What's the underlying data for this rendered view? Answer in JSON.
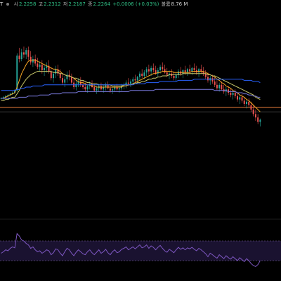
{
  "header": {
    "symbol": "T",
    "open_label": "시",
    "open_value": "2.2258",
    "high_label": "고",
    "high_value": "2.2312",
    "low_label": "저",
    "low_value": "2.2187",
    "close_label": "종",
    "close_value": "2.2264",
    "change_value": "+0.0006 (+0.03%)",
    "volume_label": "볼륨",
    "volume_value": "8.76 M"
  },
  "colors": {
    "background": "#000000",
    "up_candle": "#26a69a",
    "down_candle": "#ef5350",
    "ma_fast": "#f6a623",
    "ma_mid": "#c8c86a",
    "ma_slow": "#2962ff",
    "ma_long": "#7b7be0",
    "price_line": "#f0803c",
    "rsi_line": "#7e57c2",
    "rsi_band": "#1a1230"
  },
  "chart_data": [
    {
      "type": "candlestick",
      "x_range": [
        0,
        150
      ],
      "y_range": [
        0,
        100
      ],
      "grid": false,
      "candles": [
        [
          50,
          51,
          49,
          50
        ],
        [
          50,
          52,
          49,
          51
        ],
        [
          51,
          53,
          50,
          52
        ],
        [
          52,
          54,
          51,
          53
        ],
        [
          53,
          55,
          52,
          54
        ],
        [
          54,
          56,
          53,
          55
        ],
        [
          55,
          58,
          54,
          57
        ],
        [
          57,
          90,
          56,
          88
        ],
        [
          88,
          95,
          82,
          85
        ],
        [
          85,
          94,
          83,
          91
        ],
        [
          91,
          96,
          86,
          89
        ],
        [
          89,
          95,
          85,
          93
        ],
        [
          93,
          96,
          84,
          87
        ],
        [
          87,
          92,
          80,
          82
        ],
        [
          82,
          88,
          78,
          85
        ],
        [
          85,
          89,
          79,
          81
        ],
        [
          81,
          86,
          76,
          78
        ],
        [
          78,
          83,
          74,
          80
        ],
        [
          80,
          84,
          72,
          75
        ],
        [
          75,
          80,
          70,
          77
        ],
        [
          77,
          82,
          73,
          79
        ],
        [
          79,
          84,
          72,
          74
        ],
        [
          74,
          78,
          66,
          68
        ],
        [
          68,
          74,
          64,
          72
        ],
        [
          72,
          79,
          68,
          76
        ],
        [
          76,
          80,
          70,
          72
        ],
        [
          72,
          76,
          66,
          68
        ],
        [
          68,
          72,
          62,
          64
        ],
        [
          64,
          70,
          60,
          67
        ],
        [
          67,
          74,
          64,
          71
        ],
        [
          71,
          75,
          66,
          69
        ],
        [
          69,
          72,
          62,
          64
        ],
        [
          64,
          68,
          58,
          60
        ],
        [
          60,
          66,
          57,
          63
        ],
        [
          63,
          68,
          60,
          65
        ],
        [
          65,
          69,
          60,
          62
        ],
        [
          62,
          66,
          58,
          60
        ],
        [
          60,
          64,
          56,
          58
        ],
        [
          58,
          62,
          55,
          61
        ],
        [
          61,
          65,
          58,
          63
        ],
        [
          63,
          66,
          59,
          60
        ],
        [
          60,
          63,
          56,
          57
        ],
        [
          57,
          61,
          54,
          59
        ],
        [
          59,
          63,
          56,
          61
        ],
        [
          61,
          64,
          57,
          58
        ],
        [
          58,
          62,
          55,
          60
        ],
        [
          60,
          64,
          57,
          62
        ],
        [
          62,
          65,
          58,
          59
        ],
        [
          59,
          62,
          55,
          57
        ],
        [
          57,
          60,
          54,
          58
        ],
        [
          58,
          62,
          56,
          60
        ],
        [
          60,
          63,
          57,
          58
        ],
        [
          58,
          61,
          55,
          59
        ],
        [
          59,
          63,
          57,
          61
        ],
        [
          61,
          64,
          58,
          62
        ],
        [
          62,
          66,
          59,
          64
        ],
        [
          64,
          68,
          61,
          63
        ],
        [
          63,
          67,
          60,
          65
        ],
        [
          65,
          69,
          62,
          67
        ],
        [
          67,
          71,
          64,
          66
        ],
        [
          66,
          70,
          63,
          69
        ],
        [
          69,
          74,
          66,
          72
        ],
        [
          72,
          76,
          68,
          70
        ],
        [
          70,
          75,
          67,
          73
        ],
        [
          73,
          78,
          70,
          76
        ],
        [
          76,
          80,
          71,
          74
        ],
        [
          74,
          79,
          70,
          77
        ],
        [
          77,
          81,
          73,
          75
        ],
        [
          75,
          79,
          71,
          72
        ],
        [
          72,
          77,
          69,
          75
        ],
        [
          75,
          80,
          72,
          78
        ],
        [
          78,
          82,
          74,
          76
        ],
        [
          76,
          80,
          72,
          73
        ],
        [
          73,
          77,
          69,
          71
        ],
        [
          71,
          75,
          67,
          72
        ],
        [
          72,
          76,
          68,
          70
        ],
        [
          70,
          74,
          66,
          68
        ],
        [
          68,
          73,
          65,
          71
        ],
        [
          71,
          76,
          68,
          74
        ],
        [
          74,
          78,
          70,
          72
        ],
        [
          72,
          76,
          68,
          75
        ],
        [
          75,
          79,
          71,
          73
        ],
        [
          73,
          77,
          70,
          76
        ],
        [
          76,
          80,
          72,
          74
        ],
        [
          74,
          78,
          71,
          77
        ],
        [
          77,
          81,
          73,
          75
        ],
        [
          75,
          79,
          71,
          73
        ],
        [
          73,
          77,
          69,
          76
        ],
        [
          76,
          80,
          72,
          74
        ],
        [
          74,
          78,
          70,
          72
        ],
        [
          72,
          75,
          67,
          69
        ],
        [
          69,
          73,
          64,
          66
        ],
        [
          66,
          70,
          62,
          68
        ],
        [
          68,
          71,
          63,
          65
        ],
        [
          65,
          69,
          60,
          62
        ],
        [
          62,
          66,
          57,
          59
        ],
        [
          59,
          64,
          56,
          62
        ],
        [
          62,
          65,
          57,
          58
        ],
        [
          58,
          62,
          54,
          56
        ],
        [
          56,
          60,
          52,
          58
        ],
        [
          58,
          61,
          53,
          55
        ],
        [
          55,
          59,
          51,
          53
        ],
        [
          53,
          57,
          49,
          55
        ],
        [
          55,
          58,
          50,
          52
        ],
        [
          52,
          55,
          47,
          49
        ],
        [
          49,
          53,
          45,
          51
        ],
        [
          51,
          54,
          46,
          48
        ],
        [
          48,
          51,
          43,
          45
        ],
        [
          45,
          49,
          41,
          47
        ],
        [
          47,
          50,
          42,
          44
        ],
        [
          44,
          47,
          38,
          40
        ],
        [
          40,
          44,
          34,
          36
        ],
        [
          36,
          40,
          30,
          33
        ],
        [
          33,
          36,
          27,
          29
        ],
        [
          29,
          32,
          25,
          31
        ]
      ],
      "moving_averages": [
        {
          "key": "ma_fast",
          "values": [
            50,
            50,
            51,
            52,
            53,
            54,
            55,
            60,
            66,
            72,
            76,
            80,
            83,
            84,
            84,
            84,
            83,
            82,
            81,
            80,
            79,
            78,
            77,
            76,
            76,
            75,
            74,
            72,
            71,
            70,
            70,
            69,
            68,
            66,
            65,
            64,
            64,
            63,
            62,
            62,
            61,
            61,
            60,
            60,
            60,
            60,
            60,
            60,
            60,
            60,
            60,
            60,
            60,
            60,
            61,
            61,
            62,
            62,
            63,
            64,
            65,
            66,
            67,
            68,
            69,
            70,
            71,
            72,
            72,
            73,
            73,
            74,
            74,
            74,
            74,
            74,
            73,
            73,
            73,
            73,
            73,
            73,
            73,
            73,
            74,
            74,
            74,
            74,
            74,
            74,
            73,
            72,
            71,
            70,
            69,
            67,
            66,
            64,
            63,
            61,
            60,
            59,
            57,
            56,
            55,
            53,
            52,
            51,
            49,
            48,
            46,
            44,
            42,
            40,
            38
          ]
        },
        {
          "key": "ma_mid",
          "values": [
            48,
            48,
            49,
            49,
            50,
            51,
            51,
            54,
            57,
            61,
            64,
            67,
            69,
            71,
            72,
            73,
            74,
            74,
            74,
            74,
            74,
            74,
            74,
            73,
            73,
            73,
            72,
            72,
            71,
            70,
            70,
            69,
            68,
            68,
            67,
            66,
            66,
            65,
            64,
            64,
            63,
            63,
            63,
            62,
            62,
            62,
            62,
            62,
            62,
            61,
            61,
            61,
            61,
            61,
            62,
            62,
            62,
            62,
            63,
            63,
            64,
            64,
            65,
            65,
            66,
            67,
            67,
            68,
            68,
            69,
            69,
            70,
            70,
            70,
            71,
            71,
            71,
            71,
            71,
            71,
            72,
            72,
            72,
            72,
            72,
            72,
            72,
            72,
            72,
            72,
            72,
            71,
            71,
            70,
            70,
            69,
            68,
            67,
            66,
            65,
            64,
            63,
            62,
            61,
            60,
            59,
            58,
            57,
            56,
            55,
            54,
            53,
            51,
            50,
            49
          ]
        },
        {
          "key": "ma_slow",
          "values": [
            57,
            57,
            57,
            57,
            57,
            57,
            57,
            58,
            58,
            59,
            59,
            60,
            60,
            60,
            61,
            61,
            61,
            61,
            61,
            62,
            62,
            62,
            62,
            62,
            62,
            62,
            62,
            62,
            62,
            62,
            62,
            62,
            62,
            62,
            62,
            62,
            62,
            62,
            62,
            62,
            62,
            62,
            62,
            62,
            62,
            62,
            62,
            62,
            62,
            62,
            62,
            62,
            62,
            62,
            62,
            62,
            62,
            62,
            62,
            63,
            63,
            63,
            63,
            63,
            64,
            64,
            64,
            64,
            64,
            64,
            65,
            65,
            65,
            65,
            65,
            65,
            65,
            65,
            66,
            66,
            66,
            66,
            66,
            66,
            66,
            67,
            67,
            67,
            67,
            67,
            67,
            67,
            67,
            67,
            67,
            67,
            67,
            67,
            67,
            67,
            67,
            67,
            67,
            67,
            67,
            67,
            67,
            66,
            66,
            66,
            66,
            65,
            65,
            65,
            64
          ]
        },
        {
          "key": "ma_long",
          "values": [
            50,
            50,
            50,
            50,
            50,
            50,
            50,
            50,
            51,
            51,
            51,
            51,
            52,
            52,
            52,
            52,
            52,
            53,
            53,
            53,
            53,
            53,
            54,
            54,
            54,
            54,
            54,
            55,
            55,
            55,
            55,
            55,
            55,
            55,
            56,
            56,
            56,
            56,
            56,
            56,
            56,
            56,
            56,
            56,
            56,
            56,
            56,
            56,
            56,
            56,
            56,
            56,
            56,
            56,
            56,
            56,
            56,
            57,
            57,
            57,
            57,
            57,
            57,
            57,
            57,
            57,
            57,
            57,
            58,
            58,
            58,
            58,
            58,
            58,
            58,
            58,
            58,
            58,
            58,
            58,
            58,
            58,
            58,
            58,
            58,
            58,
            58,
            58,
            58,
            58,
            58,
            58,
            58,
            58,
            57,
            57,
            57,
            57,
            57,
            57,
            56,
            56,
            56,
            56,
            55,
            55,
            55,
            54,
            54,
            53,
            53,
            52,
            52,
            51,
            51
          ]
        }
      ],
      "horizontal_lines": [
        {
          "key": "price_line",
          "value": 42
        },
        {
          "key": "gray",
          "value": 38
        }
      ]
    },
    {
      "type": "line",
      "name": "",
      "y_range": [
        0,
        100
      ],
      "bands": [
        30,
        70
      ],
      "values": [
        45,
        48,
        52,
        50,
        55,
        58,
        56,
        85,
        80,
        72,
        70,
        65,
        62,
        55,
        58,
        52,
        48,
        50,
        45,
        48,
        52,
        50,
        42,
        46,
        54,
        52,
        45,
        40,
        48,
        55,
        52,
        45,
        40,
        47,
        52,
        48,
        44,
        42,
        48,
        52,
        46,
        42,
        47,
        52,
        45,
        48,
        53,
        46,
        42,
        48,
        52,
        46,
        48,
        53,
        55,
        58,
        52,
        55,
        58,
        54,
        58,
        62,
        56,
        58,
        62,
        55,
        60,
        57,
        52,
        57,
        61,
        55,
        50,
        47,
        53,
        50,
        46,
        52,
        57,
        53,
        56,
        52,
        56,
        54,
        57,
        53,
        50,
        55,
        52,
        48,
        44,
        38,
        45,
        42,
        38,
        35,
        42,
        38,
        34,
        40,
        36,
        33,
        38,
        34,
        30,
        36,
        32,
        28,
        34,
        30,
        24,
        20,
        18,
        22,
        30
      ]
    }
  ]
}
